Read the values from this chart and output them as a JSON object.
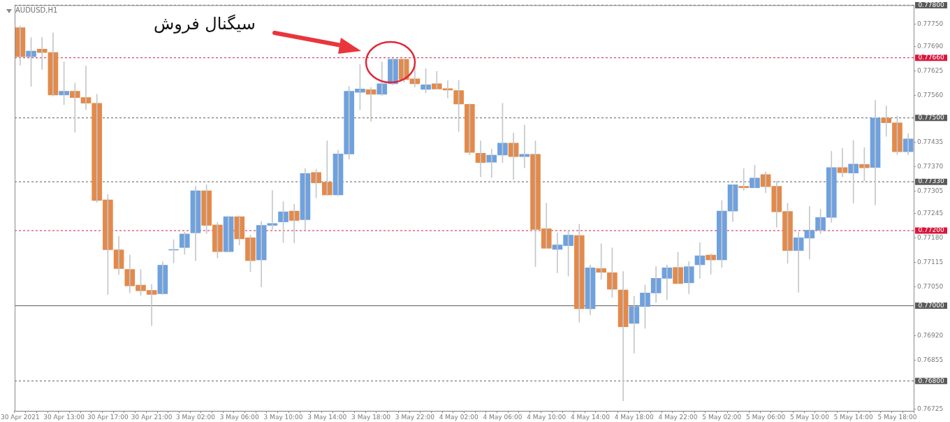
{
  "chart_data": {
    "type": "candlestick",
    "title": "AUDUSD,H1",
    "annotations": [
      "سیگنال فروش"
    ],
    "categories": [
      "30 Apr 2021",
      null,
      null,
      null,
      "30 Apr 13:00",
      null,
      null,
      null,
      "30 Apr 17:00",
      null,
      null,
      null,
      "30 Apr 21:00",
      null,
      null,
      null,
      "3 May 02:00",
      null,
      null,
      null,
      "3 May 06:00",
      null,
      null,
      null,
      "3 May 10:00",
      null,
      null,
      null,
      "3 May 14:00",
      null,
      null,
      null,
      "3 May 18:00",
      null,
      null,
      null,
      "3 May 22:00",
      null,
      null,
      null,
      "4 May 02:00",
      null,
      null,
      null,
      "4 May 06:00",
      null,
      null,
      null,
      "4 May 10:00",
      null,
      null,
      null,
      "4 May 14:00",
      null,
      null,
      null,
      "4 May 18:00",
      null,
      null,
      null,
      "4 May 22:00",
      null,
      null,
      null,
      "5 May 02:00",
      null,
      null,
      null,
      "5 May 06:00",
      null,
      null,
      null,
      "5 May 10:00",
      null,
      null,
      null,
      "5 May 14:00",
      null,
      null,
      null,
      "5 May 18:00",
      null
    ],
    "ohlc": [
      [
        0.7774,
        0.77745,
        0.7764,
        0.77663
      ],
      [
        0.77663,
        0.77714,
        0.77584,
        0.77678
      ],
      [
        0.77683,
        0.77714,
        0.77629,
        0.77674
      ],
      [
        0.77674,
        0.77726,
        0.77558,
        0.77561
      ],
      [
        0.77561,
        0.77649,
        0.77535,
        0.77571
      ],
      [
        0.77571,
        0.77593,
        0.77462,
        0.77554
      ],
      [
        0.77554,
        0.77638,
        0.77522,
        0.77539
      ],
      [
        0.77539,
        0.77563,
        0.77275,
        0.7728
      ],
      [
        0.77282,
        0.77296,
        0.7703,
        0.77149
      ],
      [
        0.77149,
        0.77185,
        0.77083,
        0.77099
      ],
      [
        0.77097,
        0.77135,
        0.77034,
        0.77053
      ],
      [
        0.77055,
        0.77097,
        0.77028,
        0.7704
      ],
      [
        0.77041,
        0.77057,
        0.76947,
        0.7703
      ],
      [
        0.77032,
        0.77117,
        0.7703,
        0.77108
      ],
      [
        0.77148,
        0.77176,
        0.77114,
        0.7715
      ],
      [
        0.77155,
        0.77196,
        0.77137,
        0.77191
      ],
      [
        0.77194,
        0.77318,
        0.7712,
        0.77306
      ],
      [
        0.77306,
        0.77322,
        0.77192,
        0.77214
      ],
      [
        0.77215,
        0.77222,
        0.77127,
        0.77144
      ],
      [
        0.77144,
        0.77239,
        0.77142,
        0.77237
      ],
      [
        0.77237,
        0.77239,
        0.77162,
        0.77178
      ],
      [
        0.77181,
        0.77188,
        0.77091,
        0.7712
      ],
      [
        0.77122,
        0.77224,
        0.7705,
        0.77214
      ],
      [
        0.77214,
        0.77307,
        0.77203,
        0.77219
      ],
      [
        0.77223,
        0.77277,
        0.77168,
        0.7725
      ],
      [
        0.77252,
        0.7727,
        0.77167,
        0.77227
      ],
      [
        0.77229,
        0.77365,
        0.77201,
        0.77352
      ],
      [
        0.77355,
        0.77363,
        0.77287,
        0.77327
      ],
      [
        0.77329,
        0.77439,
        0.77293,
        0.77295
      ],
      [
        0.77295,
        0.77414,
        0.77293,
        0.77404
      ],
      [
        0.77404,
        0.77584,
        0.7739,
        0.77571
      ],
      [
        0.77568,
        0.77642,
        0.77522,
        0.77577
      ],
      [
        0.77575,
        0.77581,
        0.77491,
        0.77563
      ],
      [
        0.77563,
        0.77649,
        0.77559,
        0.77591
      ],
      [
        0.77591,
        0.77658,
        0.77588,
        0.77656
      ],
      [
        0.77656,
        0.77658,
        0.77595,
        0.77602
      ],
      [
        0.77604,
        0.77638,
        0.77582,
        0.77591
      ],
      [
        0.77576,
        0.77631,
        0.77566,
        0.77588
      ],
      [
        0.77591,
        0.77624,
        0.77576,
        0.77577
      ],
      [
        0.77578,
        0.77599,
        0.77553,
        0.77574
      ],
      [
        0.77573,
        0.776,
        0.77464,
        0.77537
      ],
      [
        0.77536,
        0.77538,
        0.77401,
        0.77408
      ],
      [
        0.77406,
        0.77439,
        0.77343,
        0.77381
      ],
      [
        0.77382,
        0.77417,
        0.77341,
        0.77401
      ],
      [
        0.77401,
        0.77539,
        0.77381,
        0.77433
      ],
      [
        0.77433,
        0.7746,
        0.77336,
        0.77397
      ],
      [
        0.77397,
        0.77481,
        0.77367,
        0.77403
      ],
      [
        0.77403,
        0.77439,
        0.77104,
        0.77203
      ],
      [
        0.77205,
        0.77273,
        0.77153,
        0.77153
      ],
      [
        0.7715,
        0.77194,
        0.77088,
        0.77162
      ],
      [
        0.7716,
        0.77201,
        0.77079,
        0.77188
      ],
      [
        0.77187,
        0.77217,
        0.76956,
        0.76992
      ],
      [
        0.76992,
        0.77109,
        0.76976,
        0.77101
      ],
      [
        0.77099,
        0.77165,
        0.7707,
        0.77089
      ],
      [
        0.77088,
        0.77154,
        0.77022,
        0.77044
      ],
      [
        0.77042,
        0.77091,
        0.76747,
        0.76944
      ],
      [
        0.76953,
        0.77025,
        0.76874,
        0.76998
      ],
      [
        0.76998,
        0.77055,
        0.7694,
        0.77034
      ],
      [
        0.77034,
        0.77104,
        0.77009,
        0.77073
      ],
      [
        0.77073,
        0.77109,
        0.77016,
        0.77101
      ],
      [
        0.77102,
        0.77142,
        0.77059,
        0.77059
      ],
      [
        0.77061,
        0.77118,
        0.77032,
        0.77104
      ],
      [
        0.77109,
        0.77168,
        0.77073,
        0.77133
      ],
      [
        0.77135,
        0.77138,
        0.77084,
        0.77122
      ],
      [
        0.77122,
        0.7728,
        0.77102,
        0.77252
      ],
      [
        0.77252,
        0.77322,
        0.77224,
        0.77322
      ],
      [
        0.77318,
        0.77365,
        0.77307,
        0.77314
      ],
      [
        0.77314,
        0.77374,
        0.77314,
        0.7734
      ],
      [
        0.77349,
        0.77356,
        0.77301,
        0.77317
      ],
      [
        0.77318,
        0.77332,
        0.77209,
        0.7725
      ],
      [
        0.77251,
        0.77273,
        0.77113,
        0.77147
      ],
      [
        0.77147,
        0.77196,
        0.77036,
        0.77181
      ],
      [
        0.7718,
        0.77264,
        0.77124,
        0.77201
      ],
      [
        0.77201,
        0.77257,
        0.77192,
        0.77235
      ],
      [
        0.77235,
        0.77411,
        0.77222,
        0.77368
      ],
      [
        0.77368,
        0.77419,
        0.77343,
        0.77354
      ],
      [
        0.77353,
        0.7744,
        0.77273,
        0.77377
      ],
      [
        0.77376,
        0.77421,
        0.77332,
        0.77367
      ],
      [
        0.77368,
        0.77547,
        0.77268,
        0.775
      ],
      [
        0.775,
        0.77532,
        0.77451,
        0.77487
      ],
      [
        0.77487,
        0.77505,
        0.77402,
        0.7741
      ],
      [
        0.7741,
        0.77458,
        0.77402,
        0.77444
      ]
    ],
    "colors": [
      "#e38a4b",
      "#6fa1de",
      "#e38a4b",
      "#e38a4b",
      "#6fa1de",
      "#e38a4b",
      "#e38a4b",
      "#e38a4b",
      "#e38a4b",
      "#e38a4b",
      "#e38a4b",
      "#e38a4b",
      "#e38a4b",
      "#6fa1de",
      "#6fa1de",
      "#6fa1de",
      "#6fa1de",
      "#e38a4b",
      "#e38a4b",
      "#6fa1de",
      "#e38a4b",
      "#e38a4b",
      "#6fa1de",
      "#6fa1de",
      "#6fa1de",
      "#e38a4b",
      "#6fa1de",
      "#e38a4b",
      "#e38a4b",
      "#6fa1de",
      "#6fa1de",
      "#6fa1de",
      "#e38a4b",
      "#6fa1de",
      "#6fa1de",
      "#e38a4b",
      "#e38a4b",
      "#6fa1de",
      "#e38a4b",
      "#e38a4b",
      "#e38a4b",
      "#e38a4b",
      "#e38a4b",
      "#6fa1de",
      "#6fa1de",
      "#e38a4b",
      "#6fa1de",
      "#e38a4b",
      "#e38a4b",
      "#6fa1de",
      "#6fa1de",
      "#e38a4b",
      "#6fa1de",
      "#e38a4b",
      "#e38a4b",
      "#e38a4b",
      "#6fa1de",
      "#6fa1de",
      "#6fa1de",
      "#6fa1de",
      "#e38a4b",
      "#6fa1de",
      "#6fa1de",
      "#e38a4b",
      "#6fa1de",
      "#6fa1de",
      "#e38a4b",
      "#6fa1de",
      "#e38a4b",
      "#e38a4b",
      "#e38a4b",
      "#6fa1de",
      "#6fa1de",
      "#6fa1de",
      "#6fa1de",
      "#e38a4b",
      "#6fa1de",
      "#e38a4b",
      "#6fa1de",
      "#e38a4b",
      "#e38a4b",
      "#6fa1de"
    ],
    "ylim": [
      0.7672,
      0.778
    ],
    "yticks": [
      {
        "value": 0.7775,
        "label": "0.77750"
      },
      {
        "value": 0.7769,
        "label": "0.77690"
      },
      {
        "value": 0.77625,
        "label": "0.77625"
      },
      {
        "value": 0.7756,
        "label": "0.77560"
      },
      {
        "value": 0.77435,
        "label": "0.77435"
      },
      {
        "value": 0.7737,
        "label": "0.77370"
      },
      {
        "value": 0.77305,
        "label": "0.77305"
      },
      {
        "value": 0.77245,
        "label": "0.77245"
      },
      {
        "value": 0.7718,
        "label": "0.77180"
      },
      {
        "value": 0.77115,
        "label": "0.77115"
      },
      {
        "value": 0.7705,
        "label": "0.77050"
      },
      {
        "value": 0.7692,
        "label": "0.76920"
      },
      {
        "value": 0.76855,
        "label": "0.76855"
      },
      {
        "value": 0.76725,
        "label": "0.76725"
      }
    ],
    "ref_lines": [
      {
        "axis": "y",
        "value": 0.778,
        "label": "0.77800",
        "color": "#5a5a5a",
        "line_style": "dashed"
      },
      {
        "axis": "y",
        "value": 0.7766,
        "label": "0.77660",
        "color": "#d8163c",
        "line_style": "dashed"
      },
      {
        "axis": "y",
        "value": 0.775,
        "label": "0.77500",
        "color": "#5a5a5a",
        "line_style": "dashed"
      },
      {
        "axis": "y",
        "value": 0.7733,
        "label": "0.77330",
        "color": "#5a5a5a",
        "line_style": "dashed"
      },
      {
        "axis": "y",
        "value": 0.772,
        "label": "0.77200",
        "color": "#d8163c",
        "line_style": "dashed"
      },
      {
        "axis": "y",
        "value": 0.77,
        "label": "0.77000",
        "color": "#5a5a5a",
        "line_style": "solid"
      },
      {
        "axis": "y",
        "value": 0.768,
        "label": "0.76800",
        "color": "#5a5a5a",
        "line_style": "dashed"
      }
    ],
    "grid": false,
    "legend": false
  }
}
